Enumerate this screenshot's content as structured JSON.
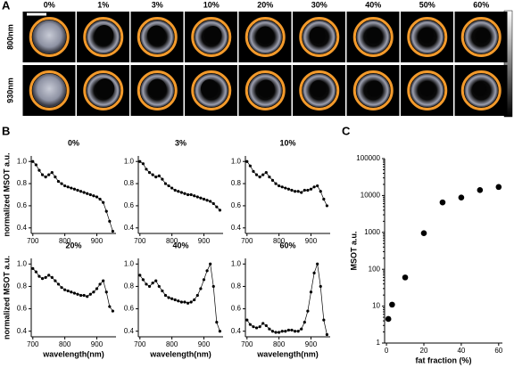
{
  "panel_a": {
    "label": "A",
    "columns": [
      "0%",
      "1%",
      "3%",
      "10%",
      "20%",
      "30%",
      "40%",
      "50%",
      "60%"
    ],
    "rows": [
      "800nm",
      "930nm"
    ]
  },
  "panel_b_label": "B",
  "panel_c_label": "C",
  "chart_data": [
    {
      "type": "line",
      "title": "0%",
      "y_label": "normalized MSOT a.u.",
      "color": "#000000",
      "x": [
        700,
        710,
        720,
        730,
        740,
        750,
        760,
        770,
        780,
        790,
        800,
        810,
        820,
        830,
        840,
        850,
        860,
        870,
        880,
        890,
        900,
        910,
        920,
        930,
        940,
        950
      ],
      "values": [
        1.0,
        0.97,
        0.92,
        0.88,
        0.86,
        0.88,
        0.9,
        0.86,
        0.82,
        0.8,
        0.78,
        0.77,
        0.76,
        0.75,
        0.74,
        0.73,
        0.72,
        0.71,
        0.7,
        0.69,
        0.68,
        0.66,
        0.63,
        0.55,
        0.46,
        0.37
      ],
      "xlim": [
        695,
        960
      ],
      "xticks": [
        700,
        800,
        900
      ],
      "ylim": [
        0.35,
        1.05
      ],
      "yticks": [
        0.4,
        0.6,
        0.8,
        {
          "value": 1,
          "label": "1.0"
        }
      ]
    },
    {
      "type": "line",
      "title": "3%",
      "color": "#000000",
      "x": [
        700,
        710,
        720,
        730,
        740,
        750,
        760,
        770,
        780,
        790,
        800,
        810,
        820,
        830,
        840,
        850,
        860,
        870,
        880,
        890,
        900,
        910,
        920,
        930,
        940,
        950
      ],
      "values": [
        1.0,
        0.98,
        0.93,
        0.9,
        0.88,
        0.86,
        0.87,
        0.84,
        0.8,
        0.78,
        0.76,
        0.74,
        0.73,
        0.72,
        0.71,
        0.7,
        0.7,
        0.69,
        0.68,
        0.67,
        0.66,
        0.65,
        0.64,
        0.62,
        0.59,
        0.56
      ],
      "xlim": [
        695,
        960
      ],
      "xticks": [
        700,
        800,
        900
      ],
      "ylim": [
        0.35,
        1.05
      ],
      "yticks": [
        0.4,
        0.6,
        0.8,
        {
          "value": 1,
          "label": "1.0"
        }
      ]
    },
    {
      "type": "line",
      "title": "10%",
      "color": "#000000",
      "x": [
        700,
        710,
        720,
        730,
        740,
        750,
        760,
        770,
        780,
        790,
        800,
        810,
        820,
        830,
        840,
        850,
        860,
        870,
        880,
        890,
        900,
        910,
        920,
        930,
        940,
        950
      ],
      "values": [
        1.0,
        0.96,
        0.91,
        0.88,
        0.86,
        0.88,
        0.9,
        0.86,
        0.83,
        0.8,
        0.78,
        0.77,
        0.76,
        0.75,
        0.74,
        0.73,
        0.73,
        0.72,
        0.74,
        0.74,
        0.75,
        0.77,
        0.78,
        0.73,
        0.66,
        0.6
      ],
      "xlim": [
        695,
        960
      ],
      "xticks": [
        700,
        800,
        900
      ],
      "ylim": [
        0.35,
        1.05
      ],
      "yticks": [
        0.4,
        0.6,
        0.8,
        {
          "value": 1,
          "label": "1.0"
        }
      ]
    },
    {
      "type": "line",
      "title": "20%",
      "y_label": "normalized MSOT a.u.",
      "x_label": "wavelength(nm)",
      "color": "#000000",
      "x": [
        700,
        710,
        720,
        730,
        740,
        750,
        760,
        770,
        780,
        790,
        800,
        810,
        820,
        830,
        840,
        850,
        860,
        870,
        880,
        890,
        900,
        910,
        920,
        930,
        940,
        950
      ],
      "values": [
        0.96,
        0.93,
        0.89,
        0.87,
        0.88,
        0.9,
        0.88,
        0.85,
        0.82,
        0.79,
        0.77,
        0.76,
        0.75,
        0.74,
        0.73,
        0.72,
        0.72,
        0.71,
        0.73,
        0.75,
        0.78,
        0.82,
        0.85,
        0.75,
        0.62,
        0.58
      ],
      "xlim": [
        695,
        960
      ],
      "xticks": [
        700,
        800,
        900
      ],
      "ylim": [
        0.35,
        1.05
      ],
      "yticks": [
        0.4,
        0.6,
        0.8,
        {
          "value": 1,
          "label": "1.0"
        }
      ]
    },
    {
      "type": "line",
      "title": "40%",
      "x_label": "wavelength(nm)",
      "color": "#000000",
      "x": [
        700,
        710,
        720,
        730,
        740,
        750,
        760,
        770,
        780,
        790,
        800,
        810,
        820,
        830,
        840,
        850,
        860,
        870,
        880,
        890,
        900,
        910,
        920,
        930,
        940,
        950
      ],
      "values": [
        0.9,
        0.86,
        0.82,
        0.8,
        0.83,
        0.85,
        0.8,
        0.76,
        0.72,
        0.7,
        0.69,
        0.68,
        0.67,
        0.66,
        0.66,
        0.65,
        0.66,
        0.68,
        0.72,
        0.78,
        0.86,
        0.94,
        1.0,
        0.8,
        0.48,
        0.4
      ],
      "xlim": [
        695,
        960
      ],
      "xticks": [
        700,
        800,
        900
      ],
      "ylim": [
        0.35,
        1.05
      ],
      "yticks": [
        0.4,
        0.6,
        0.8,
        {
          "value": 1,
          "label": "1.0"
        }
      ]
    },
    {
      "type": "line",
      "title": "60%",
      "x_label": "wavelength(nm)",
      "color": "#000000",
      "x": [
        700,
        710,
        720,
        730,
        740,
        750,
        760,
        770,
        780,
        790,
        800,
        810,
        820,
        830,
        840,
        850,
        860,
        870,
        880,
        890,
        900,
        910,
        920,
        930,
        940,
        950
      ],
      "values": [
        0.5,
        0.46,
        0.44,
        0.43,
        0.44,
        0.47,
        0.45,
        0.42,
        0.4,
        0.39,
        0.39,
        0.4,
        0.4,
        0.41,
        0.41,
        0.4,
        0.4,
        0.42,
        0.48,
        0.58,
        0.75,
        0.92,
        1.0,
        0.8,
        0.5,
        0.37
      ],
      "xlim": [
        695,
        960
      ],
      "xticks": [
        700,
        800,
        900
      ],
      "ylim": [
        0.35,
        1.05
      ],
      "yticks": [
        0.4,
        0.6,
        0.8,
        {
          "value": 1,
          "label": "1.0"
        }
      ]
    },
    {
      "type": "scatter",
      "x_label": "fat fraction (%)",
      "y_label": "MSOT a.u.",
      "color": "#000000",
      "log_y": true,
      "x": [
        1,
        3,
        10,
        20,
        30,
        40,
        50,
        60
      ],
      "values": [
        4.5,
        11,
        60,
        950,
        6500,
        8800,
        14000,
        17000
      ],
      "xlim": [
        -1,
        62
      ],
      "xticks": [
        0,
        20,
        40,
        60
      ],
      "ylim": [
        1,
        100000
      ],
      "yticks": [
        1,
        10,
        100,
        1000,
        10000,
        100000
      ]
    }
  ]
}
